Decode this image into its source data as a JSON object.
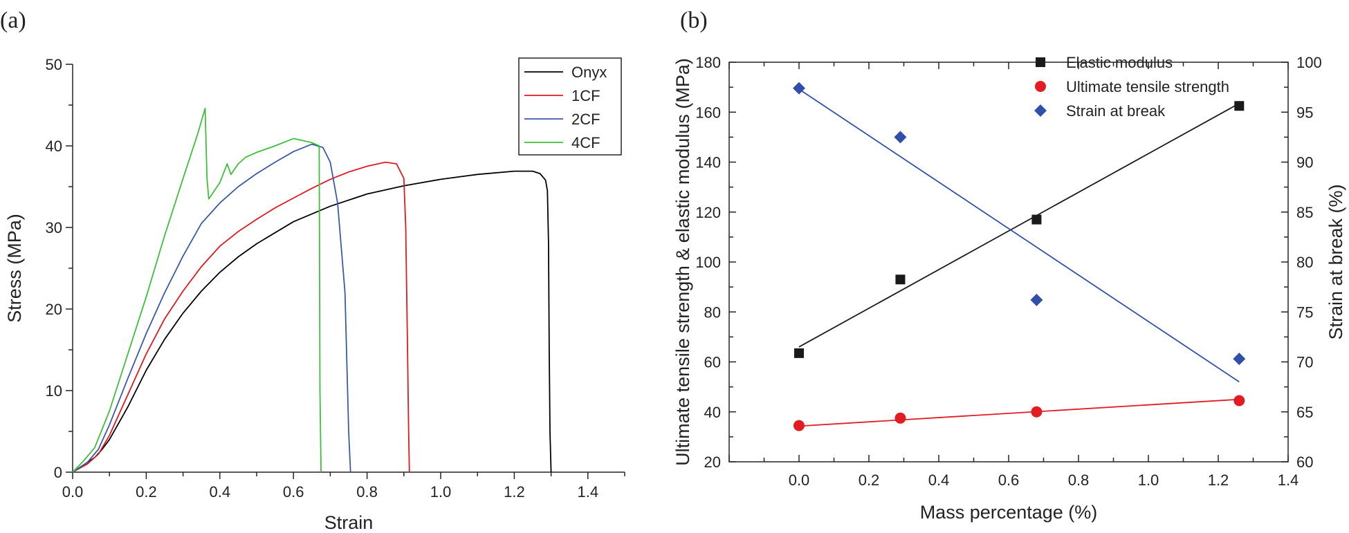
{
  "chart_data": [
    {
      "panel_label": "(a)",
      "type": "line",
      "title": "",
      "xlabel": "Strain",
      "ylabel": "Stress (MPa)",
      "xlim": [
        0,
        1.5
      ],
      "ylim": [
        0,
        50
      ],
      "xticks": [
        "0.0",
        "0.2",
        "0.4",
        "0.6",
        "0.8",
        "1.0",
        "1.2",
        "1.4"
      ],
      "yticks": [
        "0",
        "10",
        "20",
        "30",
        "40",
        "50"
      ],
      "legend": "top-right",
      "series": [
        {
          "name": "Onyx",
          "color": "#000000",
          "x": [
            0,
            0.03,
            0.06,
            0.08,
            0.1,
            0.15,
            0.2,
            0.25,
            0.3,
            0.35,
            0.4,
            0.45,
            0.5,
            0.6,
            0.7,
            0.8,
            0.9,
            1.0,
            1.1,
            1.2,
            1.25,
            1.27,
            1.285,
            1.29,
            1.293,
            1.295,
            1.297,
            1.3
          ],
          "y": [
            0,
            0.9,
            1.8,
            2.8,
            4.0,
            8.0,
            12.5,
            16.3,
            19.5,
            22.2,
            24.5,
            26.4,
            28.0,
            30.7,
            32.6,
            34.1,
            35.1,
            35.9,
            36.5,
            36.9,
            36.9,
            36.6,
            35.8,
            34.5,
            28.0,
            15.0,
            5.0,
            0
          ]
        },
        {
          "name": "1CF",
          "color": "#e0191e",
          "x": [
            0,
            0.04,
            0.07,
            0.1,
            0.15,
            0.2,
            0.25,
            0.3,
            0.35,
            0.4,
            0.45,
            0.5,
            0.55,
            0.6,
            0.65,
            0.7,
            0.75,
            0.8,
            0.85,
            0.88,
            0.9,
            0.905,
            0.91,
            0.913,
            0.915
          ],
          "y": [
            0,
            1.0,
            2.2,
            4.5,
            9.5,
            14.5,
            18.8,
            22.2,
            25.2,
            27.7,
            29.5,
            31.0,
            32.4,
            33.6,
            34.8,
            35.9,
            36.8,
            37.5,
            38.0,
            37.8,
            36.0,
            30.0,
            15.0,
            5.0,
            0
          ]
        },
        {
          "name": "2CF",
          "color": "#3b58a8",
          "x": [
            0,
            0.04,
            0.07,
            0.1,
            0.15,
            0.2,
            0.25,
            0.3,
            0.35,
            0.4,
            0.45,
            0.5,
            0.55,
            0.6,
            0.65,
            0.68,
            0.7,
            0.72,
            0.74,
            0.75,
            0.755
          ],
          "y": [
            0,
            1.2,
            2.8,
            5.8,
            11.5,
            17.0,
            22.0,
            26.5,
            30.5,
            33.0,
            35.0,
            36.6,
            38.0,
            39.3,
            40.2,
            39.8,
            38.0,
            33.0,
            22.0,
            5.0,
            0
          ]
        },
        {
          "name": "4CF",
          "color": "#3cbf3a",
          "x": [
            0,
            0.03,
            0.06,
            0.1,
            0.15,
            0.2,
            0.25,
            0.3,
            0.34,
            0.36,
            0.365,
            0.37,
            0.4,
            0.42,
            0.43,
            0.45,
            0.47,
            0.5,
            0.55,
            0.6,
            0.65,
            0.67,
            0.672,
            0.675
          ],
          "y": [
            0,
            1.4,
            3.0,
            7.5,
            14.5,
            21.5,
            29.0,
            36.0,
            41.5,
            44.6,
            36.0,
            33.5,
            35.5,
            37.8,
            36.5,
            37.8,
            38.6,
            39.2,
            40.0,
            40.9,
            40.4,
            40.0,
            10.0,
            0
          ]
        }
      ]
    },
    {
      "panel_label": "(b)",
      "type": "scatter",
      "title": "",
      "xlabel": "Mass percentage (%)",
      "ylabel": "Ultimate tensile strength & elastic modulus (MPa)",
      "ylabel_right": "Strain at break (%)",
      "xlim": [
        -0.2,
        1.4
      ],
      "ylim": [
        20,
        180
      ],
      "ylim_right": [
        60,
        100
      ],
      "xticks": [
        "0.0",
        "0.2",
        "0.4",
        "0.6",
        "0.8",
        "1.0",
        "1.2",
        "1.4"
      ],
      "yticks": [
        "20",
        "40",
        "60",
        "80",
        "100",
        "120",
        "140",
        "160",
        "180"
      ],
      "yticks_right": [
        "60",
        "65",
        "70",
        "75",
        "80",
        "85",
        "90",
        "95",
        "100"
      ],
      "legend": "top-right",
      "series": [
        {
          "name": "Elastic modulus",
          "marker": "square",
          "color": "#1a1a1a",
          "axis": "left",
          "x": [
            0,
            0.29,
            0.68,
            1.26
          ],
          "y": [
            63.5,
            93.0,
            117.0,
            162.5
          ],
          "fit": {
            "x": [
              0,
              1.26
            ],
            "y": [
              66.0,
              163.5
            ]
          }
        },
        {
          "name": "Ultimate tensile strength",
          "marker": "circle",
          "color": "#e31b23",
          "axis": "left",
          "x": [
            0,
            0.29,
            0.68,
            1.26
          ],
          "y": [
            34.5,
            37.5,
            40.0,
            44.5
          ],
          "fit": {
            "x": [
              0,
              1.26
            ],
            "y": [
              34.3,
              45.0
            ]
          }
        },
        {
          "name": "Strain at break",
          "marker": "diamond",
          "color": "#2f4fa8",
          "axis": "right",
          "x": [
            0,
            0.29,
            0.68,
            1.26
          ],
          "y": [
            97.4,
            92.5,
            76.2,
            70.3
          ],
          "fit": {
            "x": [
              0,
              1.26
            ],
            "y": [
              97.3,
              68.0
            ]
          }
        }
      ]
    }
  ]
}
